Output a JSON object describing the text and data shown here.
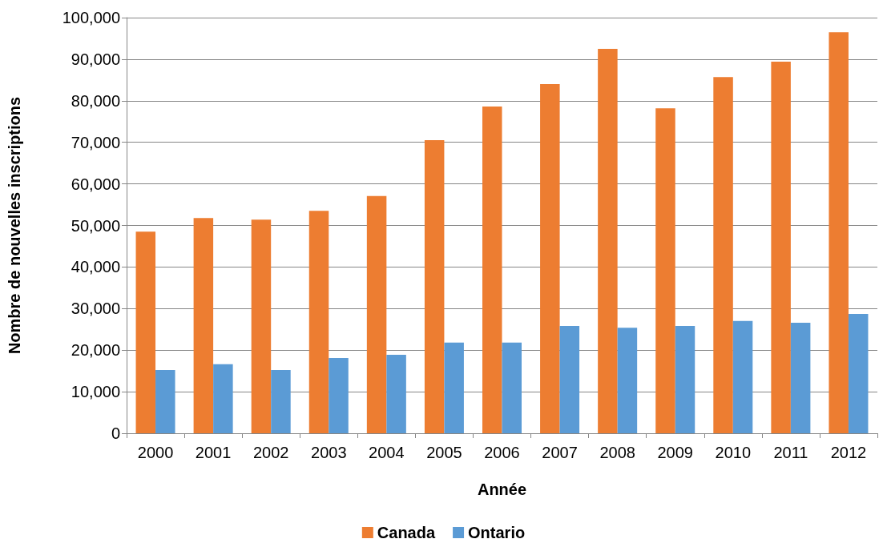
{
  "chart_data": {
    "type": "bar",
    "xlabel": "Année",
    "ylabel": "Nombre de nouvelles inscriptions",
    "categories": [
      "2000",
      "2001",
      "2002",
      "2003",
      "2004",
      "2005",
      "2006",
      "2007",
      "2008",
      "2009",
      "2010",
      "2011",
      "2012"
    ],
    "series": [
      {
        "name": "Canada",
        "color": "#ed7d31",
        "values": [
          48500,
          51800,
          51400,
          53500,
          57100,
          70500,
          78600,
          84000,
          92500,
          78200,
          85700,
          89400,
          96500
        ]
      },
      {
        "name": "Ontario",
        "color": "#5b9bd5",
        "values": [
          15200,
          16600,
          15200,
          18100,
          18900,
          21800,
          21800,
          25800,
          25400,
          25800,
          27000,
          26600,
          28700
        ]
      }
    ],
    "ylim": [
      0,
      100000
    ],
    "yticks": [
      {
        "value": 0,
        "label": "0"
      },
      {
        "value": 10000,
        "label": "10,000"
      },
      {
        "value": 20000,
        "label": "20,000"
      },
      {
        "value": 30000,
        "label": "30,000"
      },
      {
        "value": 40000,
        "label": "40,000"
      },
      {
        "value": 50000,
        "label": "50,000"
      },
      {
        "value": 60000,
        "label": "60,000"
      },
      {
        "value": 70000,
        "label": "70,000"
      },
      {
        "value": 80000,
        "label": "80,000"
      },
      {
        "value": 90000,
        "label": "90,000"
      },
      {
        "value": 100000,
        "label": "100,000"
      }
    ],
    "grid": "y",
    "legend": "bottom"
  }
}
